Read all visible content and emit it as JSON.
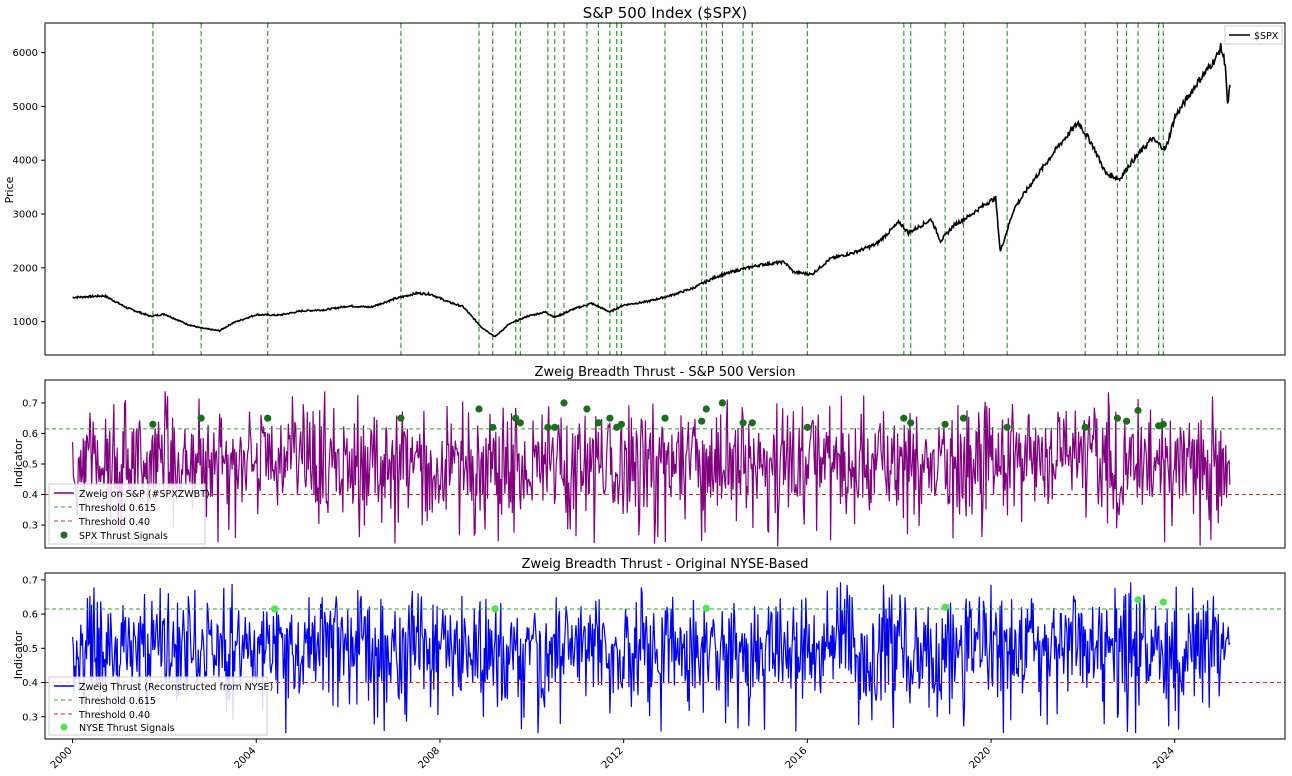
{
  "colors": {
    "price_line": "#000000",
    "spx_zwbt_line": "#800080",
    "nyse_zwbt_line": "#0000ee",
    "signal_vline": "#2ca02c",
    "threshold_upper": "#2ca02c",
    "threshold_lower": "#d62728",
    "spx_signal_marker": "#1b6f1b",
    "nyse_signal_marker": "#4ee64e"
  },
  "chart_data": [
    {
      "type": "line",
      "title": "S&P 500 Index ($SPX)",
      "xlabel": "",
      "ylabel": "Price",
      "ylim": [
        380,
        6550
      ],
      "xlim": [
        1999.4,
        2026.4
      ],
      "yticks": [
        1000,
        2000,
        3000,
        4000,
        5000,
        6000
      ],
      "grid": false,
      "legend": {
        "position": "top-right",
        "entries": [
          "$SPX"
        ]
      },
      "series": [
        {
          "name": "$SPX",
          "x": [
            2000.0,
            2000.7,
            2001.2,
            2001.7,
            2002.0,
            2002.5,
            2002.8,
            2003.2,
            2003.5,
            2004.0,
            2004.5,
            2005.0,
            2005.5,
            2006.0,
            2006.5,
            2007.0,
            2007.5,
            2007.8,
            2008.2,
            2008.5,
            2008.9,
            2009.2,
            2009.5,
            2009.9,
            2010.3,
            2010.5,
            2010.9,
            2011.3,
            2011.7,
            2012.0,
            2012.5,
            2013.0,
            2013.5,
            2014.0,
            2014.5,
            2015.0,
            2015.5,
            2015.7,
            2016.1,
            2016.5,
            2017.0,
            2017.5,
            2018.0,
            2018.2,
            2018.7,
            2018.9,
            2019.2,
            2019.5,
            2019.9,
            2020.1,
            2020.2,
            2020.5,
            2020.9,
            2021.5,
            2021.9,
            2022.2,
            2022.5,
            2022.8,
            2023.0,
            2023.5,
            2023.8,
            2024.0,
            2024.5,
            2024.9,
            2025.0,
            2025.1,
            2025.15,
            2025.2
          ],
          "values": [
            1450,
            1480,
            1250,
            1100,
            1140,
            950,
            880,
            830,
            980,
            1130,
            1120,
            1200,
            1220,
            1290,
            1270,
            1420,
            1530,
            1510,
            1360,
            1280,
            900,
            720,
            950,
            1100,
            1180,
            1080,
            1230,
            1340,
            1180,
            1310,
            1370,
            1480,
            1620,
            1830,
            1960,
            2060,
            2110,
            1920,
            1880,
            2170,
            2280,
            2440,
            2850,
            2650,
            2900,
            2500,
            2800,
            2950,
            3200,
            3300,
            2300,
            3100,
            3600,
            4300,
            4700,
            4300,
            3750,
            3650,
            3900,
            4400,
            4200,
            4800,
            5450,
            5900,
            6100,
            5800,
            5000,
            5400
          ]
        }
      ],
      "signal_dates": [
        2001.75,
        2002.8,
        2004.25,
        2007.15,
        2008.85,
        2009.15,
        2009.65,
        2009.75,
        2010.35,
        2010.5,
        2010.7,
        2011.2,
        2011.45,
        2011.7,
        2011.85,
        2011.95,
        2012.9,
        2013.7,
        2013.8,
        2014.15,
        2014.6,
        2014.8,
        2016.0,
        2018.1,
        2018.25,
        2019.0,
        2019.4,
        2020.35,
        2022.05,
        2022.75,
        2022.95,
        2023.2,
        2023.65,
        2023.75
      ]
    },
    {
      "type": "line",
      "title": "Zweig Breadth Thrust - S&P 500 Version",
      "xlabel": "",
      "ylabel": "Indicator",
      "ylim": [
        0.225,
        0.775
      ],
      "xlim": [
        1999.4,
        2026.4
      ],
      "yticks": [
        0.3,
        0.4,
        0.5,
        0.6,
        0.7
      ],
      "grid": false,
      "legend": {
        "position": "lower-left",
        "entries": [
          "Zweig on S&P (#SPXZWBT)",
          "Threshold 0.615",
          "Threshold 0.40",
          "SPX Thrust Signals"
        ]
      },
      "thresholds": [
        0.615,
        0.4
      ],
      "series": [
        {
          "name": "Zweig on S&P (#SPXZWBT)",
          "x_start": 2000.0,
          "x_end": 2025.2,
          "mean": 0.5,
          "min": 0.23,
          "max": 0.74
        }
      ],
      "signals": {
        "name": "SPX Thrust Signals",
        "x": [
          2001.75,
          2002.8,
          2004.25,
          2007.15,
          2008.85,
          2009.15,
          2009.65,
          2009.75,
          2010.35,
          2010.5,
          2010.7,
          2011.2,
          2011.45,
          2011.7,
          2011.85,
          2011.95,
          2012.9,
          2013.7,
          2013.8,
          2014.15,
          2014.6,
          2014.8,
          2016.0,
          2018.1,
          2018.25,
          2019.0,
          2019.4,
          2020.35,
          2022.05,
          2022.75,
          2022.95,
          2023.2,
          2023.65,
          2023.75
        ],
        "y": [
          0.63,
          0.65,
          0.65,
          0.65,
          0.68,
          0.62,
          0.65,
          0.635,
          0.62,
          0.62,
          0.7,
          0.68,
          0.635,
          0.65,
          0.62,
          0.63,
          0.65,
          0.64,
          0.68,
          0.7,
          0.635,
          0.635,
          0.62,
          0.65,
          0.635,
          0.63,
          0.65,
          0.62,
          0.62,
          0.65,
          0.64,
          0.675,
          0.625,
          0.63
        ]
      }
    },
    {
      "type": "line",
      "title": "Zweig Breadth Thrust - Original NYSE-Based",
      "xlabel": "",
      "ylabel": "Indicator",
      "ylim": [
        0.235,
        0.72
      ],
      "xlim": [
        1999.4,
        2026.4
      ],
      "yticks": [
        0.3,
        0.4,
        0.5,
        0.6,
        0.7
      ],
      "xticks": [
        "2000",
        "2004",
        "2008",
        "2012",
        "2016",
        "2020",
        "2024"
      ],
      "grid": false,
      "legend": {
        "position": "lower-left",
        "entries": [
          "Zweig Thrust (Reconstructed from NYSE)",
          "Threshold 0.615",
          "Threshold 0.40",
          "NYSE Thrust Signals"
        ]
      },
      "thresholds": [
        0.615,
        0.4
      ],
      "series": [
        {
          "name": "Zweig Thrust (Reconstructed from NYSE)",
          "x_start": 2000.0,
          "x_end": 2025.2,
          "mean": 0.5,
          "min": 0.25,
          "max": 0.7
        }
      ],
      "signals": {
        "name": "NYSE Thrust Signals",
        "x": [
          2004.4,
          2009.2,
          2013.8,
          2019.0,
          2023.2,
          2023.75
        ],
        "y": [
          0.615,
          0.615,
          0.617,
          0.62,
          0.642,
          0.635
        ]
      }
    }
  ]
}
